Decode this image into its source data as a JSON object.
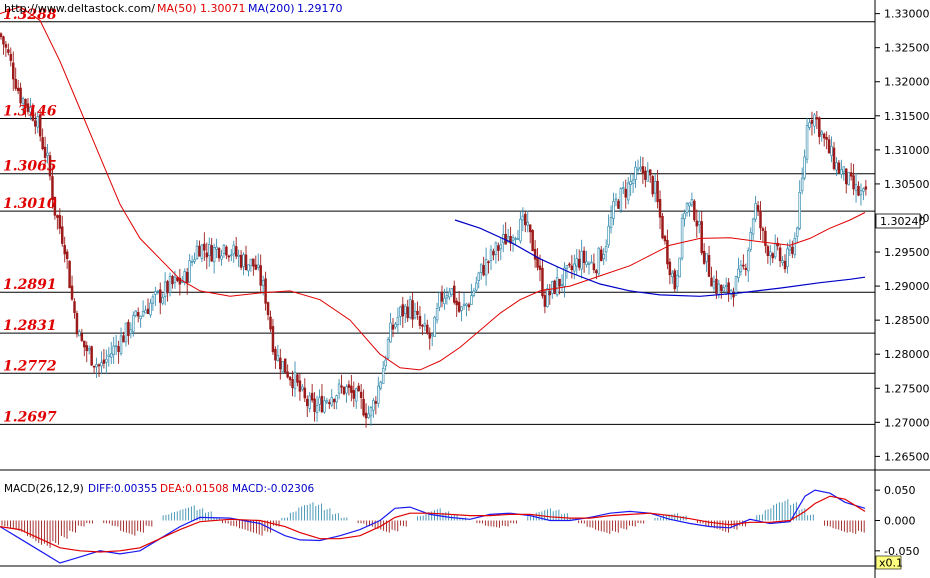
{
  "header": {
    "url": "http://www.deltastock.com/",
    "ma50_label": "MA(50)",
    "ma50_value": "1.30071",
    "ma200_label": "MA(200)",
    "ma200_value": "1.29170"
  },
  "chart_data": {
    "type": "candlestick",
    "y_axis": {
      "ylim": [
        1.263,
        1.332
      ],
      "ticks": [
        "1.33000",
        "1.32500",
        "1.32000",
        "1.31500",
        "1.31000",
        "1.30500",
        "1.30000",
        "1.29500",
        "1.29000",
        "1.28500",
        "1.28000",
        "1.27500",
        "1.27000",
        "1.26500"
      ]
    },
    "last_price": "1.30240",
    "levels": [
      {
        "label": "1.3288",
        "value": 1.3288
      },
      {
        "label": "1.3146",
        "value": 1.3146
      },
      {
        "label": "1.3065",
        "value": 1.3065
      },
      {
        "label": "1.3010",
        "value": 1.301
      },
      {
        "label": "1.2891",
        "value": 1.2891
      },
      {
        "label": "1.2831",
        "value": 1.2831
      },
      {
        "label": "1.2772",
        "value": 1.2772
      },
      {
        "label": "1.2697",
        "value": 1.2697
      }
    ],
    "price_path_points": [
      [
        0,
        1.327
      ],
      [
        8,
        1.324
      ],
      [
        20,
        1.318
      ],
      [
        35,
        1.315
      ],
      [
        48,
        1.308
      ],
      [
        55,
        1.301
      ],
      [
        65,
        1.296
      ],
      [
        72,
        1.288
      ],
      [
        80,
        1.282
      ],
      [
        90,
        1.28
      ],
      [
        100,
        1.278
      ],
      [
        110,
        1.28
      ],
      [
        125,
        1.283
      ],
      [
        140,
        1.286
      ],
      [
        155,
        1.288
      ],
      [
        170,
        1.29
      ],
      [
        185,
        1.291
      ],
      [
        198,
        1.296
      ],
      [
        210,
        1.295
      ],
      [
        225,
        1.296
      ],
      [
        240,
        1.294
      ],
      [
        255,
        1.293
      ],
      [
        265,
        1.289
      ],
      [
        275,
        1.28
      ],
      [
        285,
        1.278
      ],
      [
        295,
        1.276
      ],
      [
        305,
        1.273
      ],
      [
        315,
        1.272
      ],
      [
        330,
        1.274
      ],
      [
        345,
        1.275
      ],
      [
        360,
        1.273
      ],
      [
        370,
        1.271
      ],
      [
        380,
        1.276
      ],
      [
        390,
        1.283
      ],
      [
        400,
        1.286
      ],
      [
        410,
        1.287
      ],
      [
        420,
        1.284
      ],
      [
        432,
        1.282
      ],
      [
        440,
        1.288
      ],
      [
        450,
        1.29
      ],
      [
        460,
        1.286
      ],
      [
        470,
        1.288
      ],
      [
        480,
        1.292
      ],
      [
        490,
        1.294
      ],
      [
        500,
        1.296
      ],
      [
        512,
        1.298
      ],
      [
        525,
        1.299
      ],
      [
        535,
        1.295
      ],
      [
        545,
        1.288
      ],
      [
        555,
        1.29
      ],
      [
        570,
        1.292
      ],
      [
        580,
        1.294
      ],
      [
        595,
        1.293
      ],
      [
        605,
        1.296
      ],
      [
        615,
        1.302
      ],
      [
        625,
        1.304
      ],
      [
        635,
        1.306
      ],
      [
        645,
        1.307
      ],
      [
        655,
        1.304
      ],
      [
        665,
        1.296
      ],
      [
        675,
        1.29
      ],
      [
        685,
        1.302
      ],
      [
        695,
        1.301
      ],
      [
        705,
        1.294
      ],
      [
        715,
        1.29
      ],
      [
        725,
        1.289
      ],
      [
        735,
        1.29
      ],
      [
        745,
        1.293
      ],
      [
        755,
        1.302
      ],
      [
        765,
        1.296
      ],
      [
        775,
        1.295
      ],
      [
        785,
        1.293
      ],
      [
        795,
        1.297
      ],
      [
        802,
        1.305
      ],
      [
        808,
        1.315
      ],
      [
        815,
        1.315
      ],
      [
        825,
        1.311
      ],
      [
        835,
        1.308
      ],
      [
        845,
        1.306
      ],
      [
        855,
        1.304
      ],
      [
        865,
        1.303
      ]
    ],
    "ma50_points": [
      [
        0,
        1.33
      ],
      [
        20,
        1.331
      ],
      [
        40,
        1.329
      ],
      [
        60,
        1.323
      ],
      [
        80,
        1.316
      ],
      [
        100,
        1.309
      ],
      [
        120,
        1.302
      ],
      [
        140,
        1.297
      ],
      [
        160,
        1.294
      ],
      [
        180,
        1.291
      ],
      [
        200,
        1.2893
      ],
      [
        230,
        1.2885
      ],
      [
        260,
        1.289
      ],
      [
        290,
        1.2893
      ],
      [
        320,
        1.288
      ],
      [
        350,
        1.285
      ],
      [
        380,
        1.28
      ],
      [
        400,
        1.278
      ],
      [
        420,
        1.2777
      ],
      [
        440,
        1.279
      ],
      [
        460,
        1.281
      ],
      [
        480,
        1.2835
      ],
      [
        500,
        1.286
      ],
      [
        520,
        1.288
      ],
      [
        540,
        1.2893
      ],
      [
        570,
        1.29
      ],
      [
        600,
        1.2915
      ],
      [
        630,
        1.293
      ],
      [
        650,
        1.2945
      ],
      [
        670,
        1.296
      ],
      [
        700,
        1.297
      ],
      [
        730,
        1.2971
      ],
      [
        760,
        1.2965
      ],
      [
        790,
        1.296
      ],
      [
        810,
        1.297
      ],
      [
        830,
        1.2985
      ],
      [
        850,
        1.2997
      ],
      [
        865,
        1.3008
      ]
    ],
    "ma200_points": [
      [
        455,
        1.2997
      ],
      [
        480,
        1.2985
      ],
      [
        510,
        1.2965
      ],
      [
        540,
        1.294
      ],
      [
        570,
        1.292
      ],
      [
        600,
        1.2903
      ],
      [
        630,
        1.2893
      ],
      [
        660,
        1.2887
      ],
      [
        700,
        1.2885
      ],
      [
        740,
        1.289
      ],
      [
        780,
        1.2897
      ],
      [
        820,
        1.2905
      ],
      [
        850,
        1.291
      ],
      [
        865,
        1.2913
      ]
    ],
    "macd": {
      "label": "MACD(26,12,9)",
      "diff_label": "DIFF:0.00355",
      "dea_label": "DEA:0.01508",
      "macd_label": "MACD:-0.02306",
      "ylim": [
        -0.075,
        0.07
      ],
      "ticks": [
        "0.050",
        "0.000",
        "-0.050"
      ],
      "multiplier_badge": "x0.1",
      "diff_points": [
        [
          0,
          -0.01
        ],
        [
          20,
          -0.03
        ],
        [
          40,
          -0.05
        ],
        [
          60,
          -0.07
        ],
        [
          80,
          -0.06
        ],
        [
          100,
          -0.05
        ],
        [
          120,
          -0.055
        ],
        [
          140,
          -0.05
        ],
        [
          160,
          -0.03
        ],
        [
          180,
          -0.01
        ],
        [
          200,
          0.005
        ],
        [
          230,
          0.004
        ],
        [
          260,
          -0.005
        ],
        [
          285,
          -0.025
        ],
        [
          300,
          -0.032
        ],
        [
          320,
          -0.033
        ],
        [
          340,
          -0.025
        ],
        [
          360,
          -0.015
        ],
        [
          380,
          0.0
        ],
        [
          395,
          0.02
        ],
        [
          410,
          0.022
        ],
        [
          430,
          0.01
        ],
        [
          450,
          0.005
        ],
        [
          470,
          0.002
        ],
        [
          490,
          0.01
        ],
        [
          510,
          0.012
        ],
        [
          530,
          0.008
        ],
        [
          550,
          0.0
        ],
        [
          570,
          0.0
        ],
        [
          590,
          0.005
        ],
        [
          610,
          0.012
        ],
        [
          630,
          0.015
        ],
        [
          650,
          0.012
        ],
        [
          670,
          0.002
        ],
        [
          690,
          -0.005
        ],
        [
          710,
          -0.01
        ],
        [
          730,
          -0.012
        ],
        [
          750,
          0.002
        ],
        [
          770,
          -0.005
        ],
        [
          790,
          -0.002
        ],
        [
          805,
          0.04
        ],
        [
          815,
          0.05
        ],
        [
          830,
          0.045
        ],
        [
          845,
          0.03
        ],
        [
          865,
          0.02
        ]
      ],
      "dea_points": [
        [
          0,
          -0.01
        ],
        [
          20,
          -0.015
        ],
        [
          40,
          -0.03
        ],
        [
          60,
          -0.045
        ],
        [
          80,
          -0.05
        ],
        [
          100,
          -0.052
        ],
        [
          120,
          -0.05
        ],
        [
          140,
          -0.045
        ],
        [
          160,
          -0.03
        ],
        [
          180,
          -0.015
        ],
        [
          200,
          -0.002
        ],
        [
          230,
          0.002
        ],
        [
          260,
          0.0
        ],
        [
          285,
          -0.01
        ],
        [
          300,
          -0.02
        ],
        [
          320,
          -0.03
        ],
        [
          340,
          -0.03
        ],
        [
          360,
          -0.025
        ],
        [
          380,
          -0.01
        ],
        [
          395,
          0.005
        ],
        [
          410,
          0.012
        ],
        [
          430,
          0.012
        ],
        [
          450,
          0.01
        ],
        [
          470,
          0.008
        ],
        [
          490,
          0.008
        ],
        [
          510,
          0.01
        ],
        [
          530,
          0.01
        ],
        [
          550,
          0.006
        ],
        [
          570,
          0.004
        ],
        [
          590,
          0.004
        ],
        [
          610,
          0.008
        ],
        [
          630,
          0.01
        ],
        [
          650,
          0.012
        ],
        [
          670,
          0.008
        ],
        [
          690,
          0.003
        ],
        [
          710,
          -0.003
        ],
        [
          730,
          -0.007
        ],
        [
          750,
          -0.003
        ],
        [
          770,
          -0.003
        ],
        [
          790,
          0.0
        ],
        [
          805,
          0.015
        ],
        [
          815,
          0.028
        ],
        [
          830,
          0.04
        ],
        [
          845,
          0.035
        ],
        [
          865,
          0.015
        ]
      ],
      "histogram": [
        -0.01,
        -0.015,
        -0.02,
        -0.03,
        -0.04,
        -0.045,
        -0.04,
        -0.03,
        -0.02,
        -0.01,
        -0.005,
        0.0,
        -0.005,
        -0.01,
        -0.02,
        -0.025,
        -0.02,
        -0.01,
        0.0,
        0.01,
        0.015,
        0.02,
        0.025,
        0.02,
        0.015,
        0.005,
        -0.005,
        -0.01,
        -0.015,
        -0.02,
        -0.025,
        -0.02,
        -0.01,
        0.005,
        0.015,
        0.025,
        0.03,
        0.028,
        0.02,
        0.012,
        0.005,
        0.0,
        -0.005,
        -0.01,
        -0.015,
        -0.02,
        -0.018,
        -0.01,
        0.0,
        0.008,
        0.015,
        0.02,
        0.015,
        0.01,
        0.005,
        0.0,
        -0.005,
        -0.01,
        -0.012,
        -0.01,
        -0.005,
        0.0,
        0.008,
        0.015,
        0.02,
        0.018,
        0.012,
        0.005,
        -0.005,
        -0.012,
        -0.018,
        -0.022,
        -0.02,
        -0.015,
        -0.01,
        -0.005,
        0.0,
        0.005,
        0.01,
        0.012,
        0.008,
        0.0,
        -0.005,
        -0.01,
        -0.015,
        -0.02,
        -0.015,
        -0.01,
        0.0,
        0.01,
        0.02,
        0.03,
        0.035,
        0.03,
        0.02,
        0.01,
        0.0,
        -0.01,
        -0.015,
        -0.02,
        -0.022,
        -0.02
      ]
    }
  }
}
